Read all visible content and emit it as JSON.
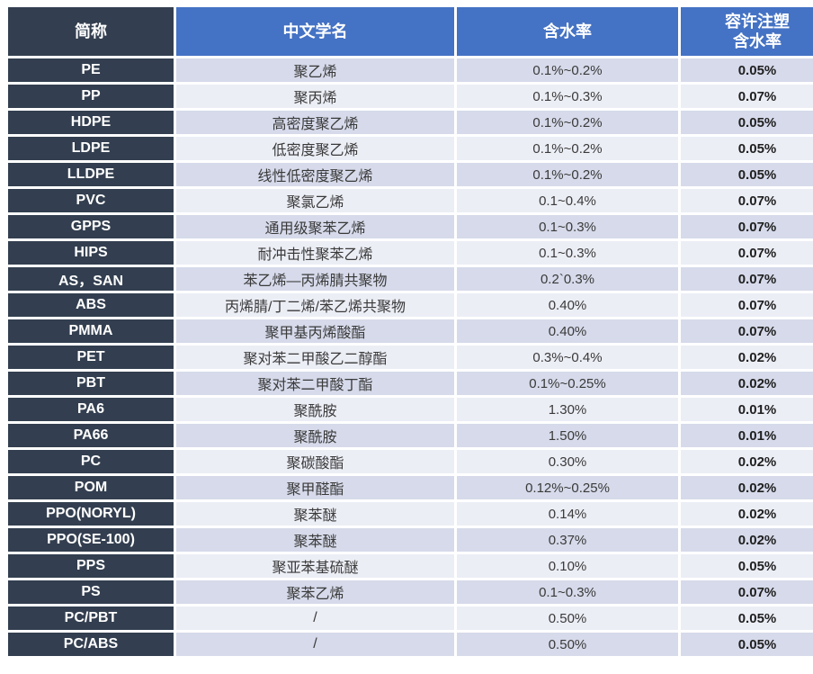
{
  "theme": {
    "header-blue": "#4472C4",
    "header-dark": "#333F50",
    "band-dark": "#D6DAEA",
    "band-light": "#ECEEF6",
    "grid-white": "#FFFFFF",
    "text-body": "#3A3A3A",
    "text-strong": "#1F1F1F",
    "text-inverse": "#FFFFFF"
  },
  "chart_data": {
    "type": "table",
    "layout": {
      "banded_rows": true,
      "first_column_style": "dark",
      "grid": "white-gaps"
    },
    "columns": [
      {
        "id": "abbr",
        "label": "简称"
      },
      {
        "id": "name",
        "label": "中文学名"
      },
      {
        "id": "moisture",
        "label": "含水率"
      },
      {
        "id": "allowed",
        "label": "容许注塑含水率",
        "label_lines": [
          "容许注塑",
          "含水率"
        ]
      }
    ],
    "rows": [
      [
        "PE",
        "聚乙烯",
        "0.1%~0.2%",
        "0.05%"
      ],
      [
        "PP",
        "聚丙烯",
        "0.1%~0.3%",
        "0.07%"
      ],
      [
        "HDPE",
        "高密度聚乙烯",
        "0.1%~0.2%",
        "0.05%"
      ],
      [
        "LDPE",
        "低密度聚乙烯",
        "0.1%~0.2%",
        "0.05%"
      ],
      [
        "LLDPE",
        "线性低密度聚乙烯",
        "0.1%~0.2%",
        "0.05%"
      ],
      [
        "PVC",
        "聚氯乙烯",
        "0.1~0.4%",
        "0.07%"
      ],
      [
        "GPPS",
        "通用级聚苯乙烯",
        "0.1~0.3%",
        "0.07%"
      ],
      [
        "HIPS",
        "耐冲击性聚苯乙烯",
        "0.1~0.3%",
        "0.07%"
      ],
      [
        "AS，SAN",
        "苯乙烯—丙烯腈共聚物",
        "0.2`0.3%",
        "0.07%"
      ],
      [
        "ABS",
        "丙烯腈/丁二烯/苯乙烯共聚物",
        "0.40%",
        "0.07%"
      ],
      [
        "PMMA",
        "聚甲基丙烯酸酯",
        "0.40%",
        "0.07%"
      ],
      [
        "PET",
        "聚对苯二甲酸乙二醇酯",
        "0.3%~0.4%",
        "0.02%"
      ],
      [
        "PBT",
        "聚对苯二甲酸丁酯",
        "0.1%~0.25%",
        "0.02%"
      ],
      [
        "PA6",
        "聚酰胺",
        "1.30%",
        "0.01%"
      ],
      [
        "PA66",
        "聚酰胺",
        "1.50%",
        "0.01%"
      ],
      [
        "PC",
        "聚碳酸酯",
        "0.30%",
        "0.02%"
      ],
      [
        "POM",
        "聚甲醛酯",
        "0.12%~0.25%",
        "0.02%"
      ],
      [
        "PPO(NORYL)",
        "聚苯醚",
        "0.14%",
        "0.02%"
      ],
      [
        "PPO(SE-100)",
        "聚苯醚",
        "0.37%",
        "0.02%"
      ],
      [
        "PPS",
        "聚亚苯基硫醚",
        "0.10%",
        "0.05%"
      ],
      [
        "PS",
        "聚苯乙烯",
        "0.1~0.3%",
        "0.07%"
      ],
      [
        "PC/PBT",
        "/",
        "0.50%",
        "0.05%"
      ],
      [
        "PC/ABS",
        "/",
        "0.50%",
        "0.05%"
      ]
    ]
  }
}
